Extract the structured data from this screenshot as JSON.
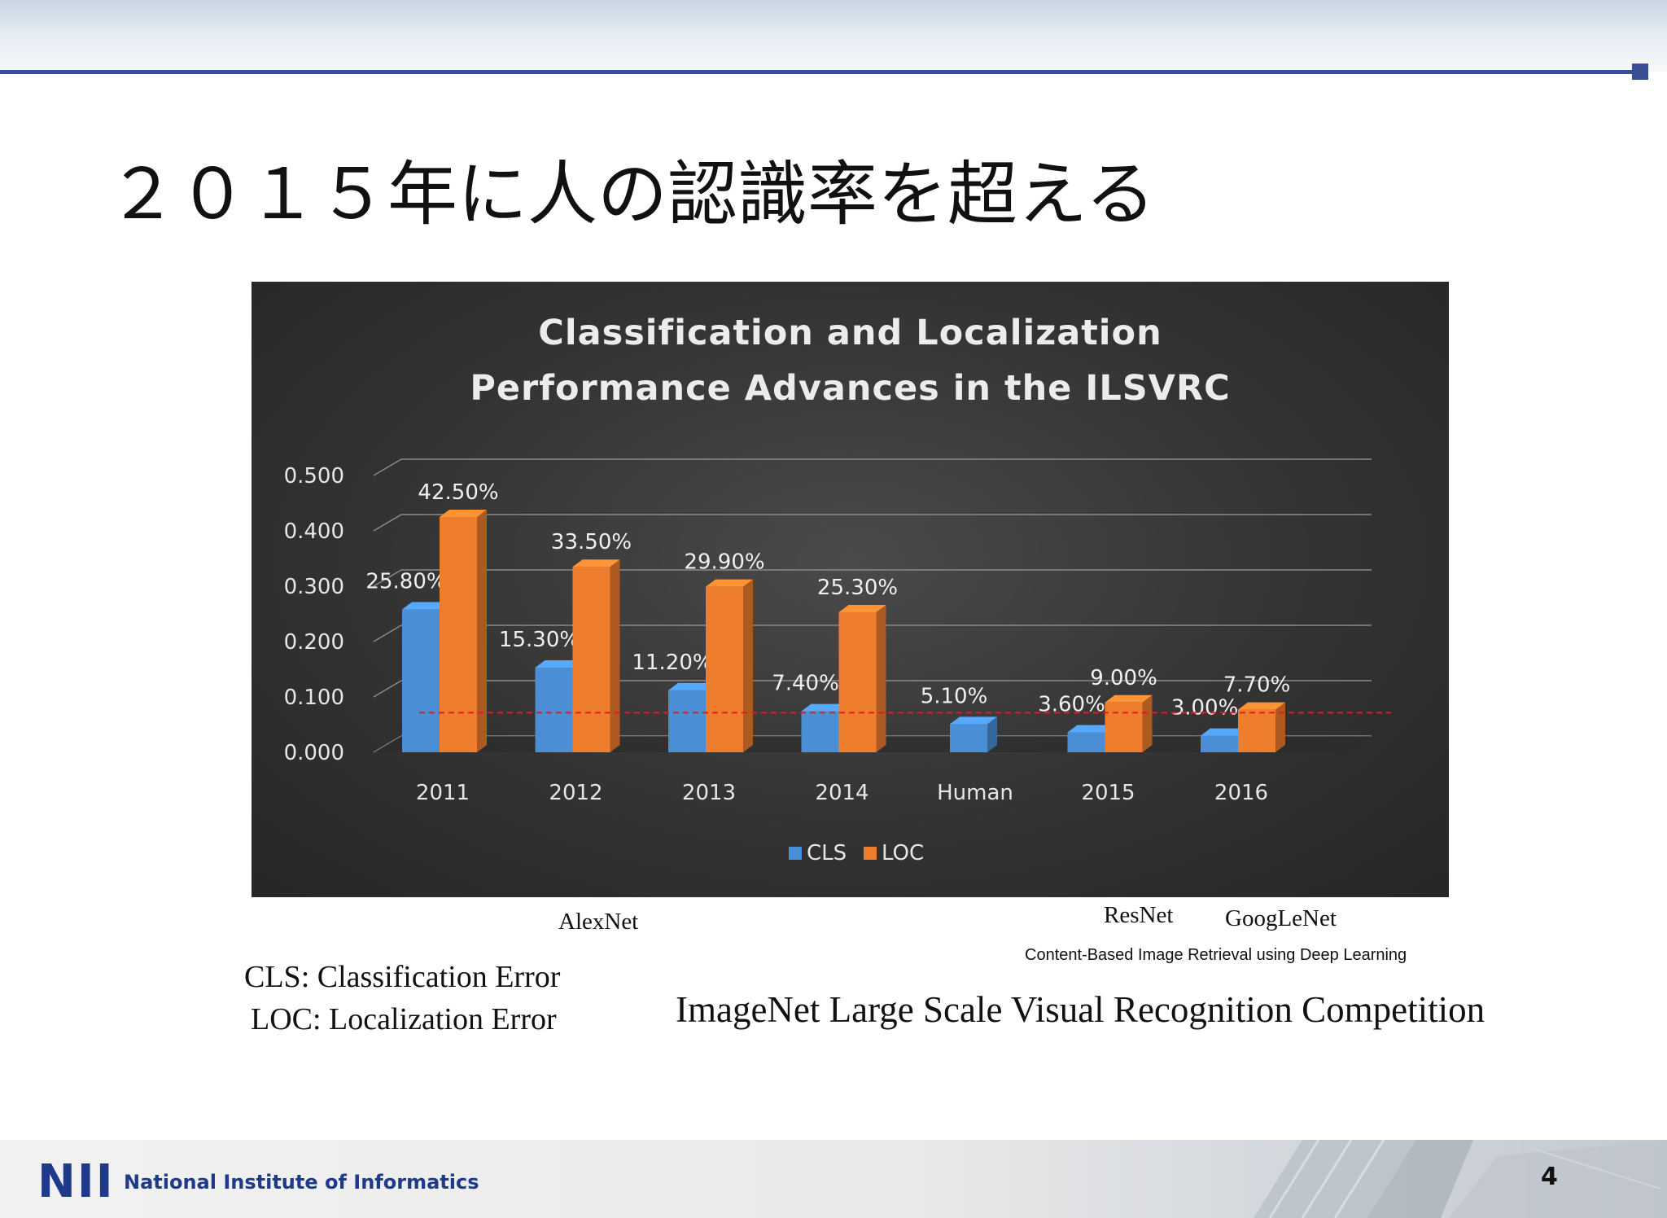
{
  "slide": {
    "title": "２０１５年に人の認識率を超える",
    "page_number": "4",
    "footer_org": "National Institute of Informatics",
    "footer_logo": "NII"
  },
  "annotations": {
    "alexnet": "AlexNet",
    "resnet": "ResNet",
    "googlenet": "GoogLeNet",
    "source": "Content-Based Image Retrieval using Deep Learning",
    "cls_def": "CLS: Classification Error",
    "loc_def": "LOC: Localization Error",
    "competition": "ImageNet Large Scale Visual Recognition Competition"
  },
  "chart_data": {
    "type": "bar",
    "title_line1": "Classification  and Localization",
    "title_line2": "Performance  Advances  in the  ILSVRC",
    "categories": [
      "2011",
      "2012",
      "2013",
      "2014",
      "Human",
      "2015",
      "2016"
    ],
    "series": [
      {
        "name": "CLS",
        "color": "#4a8fd6",
        "values": [
          0.258,
          0.153,
          0.112,
          0.074,
          0.051,
          0.036,
          0.03
        ],
        "labels": [
          "25.80%",
          "15.30%",
          "11.20%",
          "7.40%",
          "5.10%",
          "3.60%",
          "3.00%"
        ]
      },
      {
        "name": "LOC",
        "color": "#ef7d2e",
        "values": [
          0.425,
          0.335,
          0.299,
          0.253,
          null,
          0.09,
          0.077
        ],
        "labels": [
          "42.50%",
          "33.50%",
          "29.90%",
          "25.30%",
          "",
          "9.00%",
          "7.70%"
        ]
      }
    ],
    "yticks": [
      "0.000",
      "0.100",
      "0.200",
      "0.300",
      "0.400",
      "0.500"
    ],
    "ylim": [
      0,
      0.5
    ],
    "reference_line": {
      "value": 0.051,
      "color": "#e8191e",
      "style": "dashed"
    },
    "grid": true,
    "legend": "bottom-center",
    "background": "#333333"
  }
}
